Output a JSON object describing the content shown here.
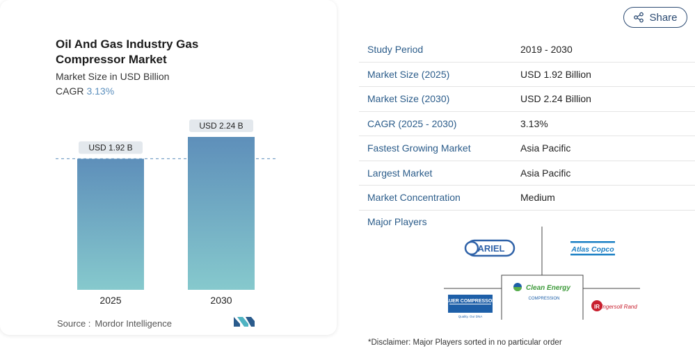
{
  "header": {
    "title": "Oil And Gas Industry Gas Compressor Market",
    "subtitle": "Market Size in USD Billion",
    "cagr_label": "CAGR",
    "cagr_value": "3.13%"
  },
  "chart_data": {
    "type": "bar",
    "categories": [
      "2025",
      "2030"
    ],
    "values": [
      1.92,
      2.24
    ],
    "data_labels": [
      "USD 1.92 B",
      "USD 2.24 B"
    ],
    "title": "Oil And Gas Industry Gas Compressor Market",
    "ylabel": "Market Size in USD Billion",
    "ylim": [
      0,
      2.24
    ],
    "grid": false,
    "reference_line": 1.92
  },
  "source": {
    "label": "Source :",
    "value": "Mordor Intelligence"
  },
  "share_label": "Share",
  "facts": [
    {
      "key": "Study Period",
      "value": "2019 - 2030"
    },
    {
      "key": "Market Size (2025)",
      "value": "USD 1.92 Billion"
    },
    {
      "key": "Market Size (2030)",
      "value": "USD 2.24 Billion"
    },
    {
      "key": "CAGR (2025 - 2030)",
      "value": "3.13%"
    },
    {
      "key": "Fastest Growing Market",
      "value": "Asia Pacific"
    },
    {
      "key": "Largest Market",
      "value": "Asia Pacific"
    },
    {
      "key": "Market Concentration",
      "value": "Medium"
    }
  ],
  "major_players_label": "Major Players",
  "players": [
    {
      "name": "ARIEL"
    },
    {
      "name": "Atlas Copco"
    },
    {
      "name": "BAUER COMPRESSORS",
      "tagline": "Quality. Our DNA"
    },
    {
      "name": "Clean Energy",
      "tagline": "COMPRESSION"
    },
    {
      "name": "Ingersoll Rand",
      "mark": "IR"
    }
  ],
  "disclaimer": "*Disclaimer: Major Players sorted in no particular order",
  "colors": {
    "bar_top": "#5e8fba",
    "bar_bottom": "#86c9cd",
    "accent": "#2b5c8a"
  }
}
